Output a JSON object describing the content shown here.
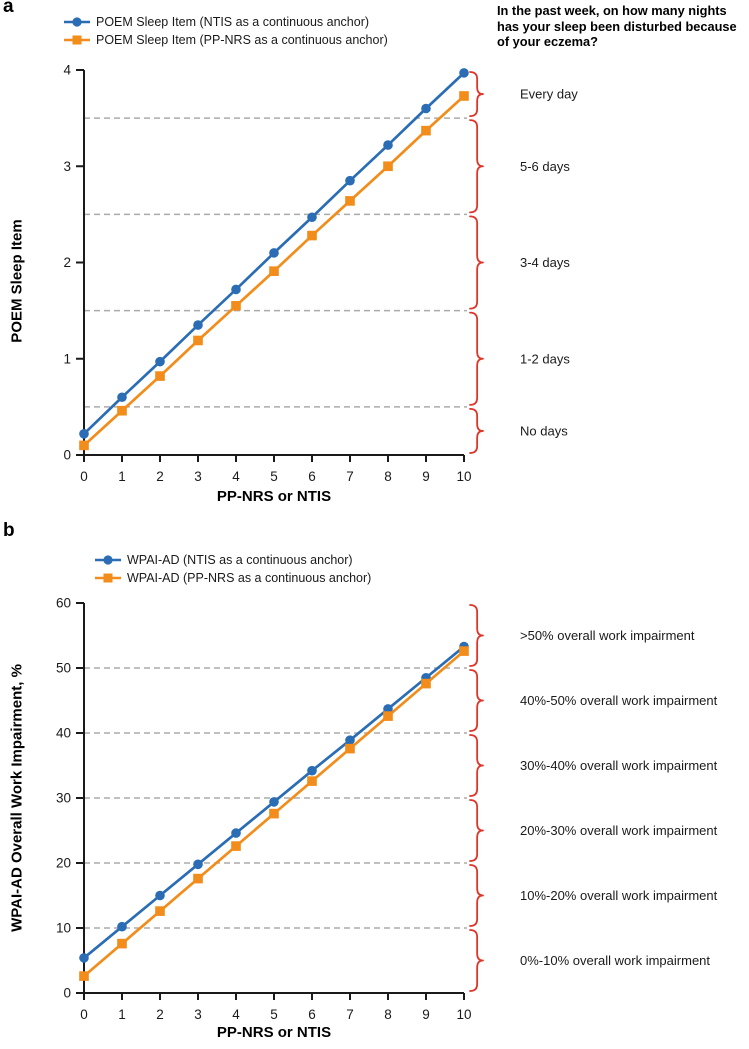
{
  "colors": {
    "blue": "#2a6db4",
    "orange": "#f28c1a",
    "brace_red": "#e03428",
    "grid_gray": "#ababab",
    "axis_black": "#1a1a1a"
  },
  "chart_data": [
    {
      "type": "line",
      "panel_label": "a",
      "question": "In the past week, on how many nights has your sleep been disturbed because of your eczema?",
      "ylabel": "POEM Sleep Item",
      "xlabel": "PP-NRS or NTIS",
      "ylim": [
        0,
        4
      ],
      "xlim": [
        0,
        10
      ],
      "yticks": [
        0,
        1,
        2,
        3,
        4
      ],
      "xticks": [
        0,
        1,
        2,
        3,
        4,
        5,
        6,
        7,
        8,
        9,
        10
      ],
      "grid_dashed_y": [
        0.5,
        1.5,
        2.5,
        3.5
      ],
      "x": [
        0,
        1,
        2,
        3,
        4,
        5,
        6,
        7,
        8,
        9,
        10
      ],
      "series": [
        {
          "name": "POEM Sleep Item (NTIS as a continuous anchor)",
          "marker": "circle",
          "color": "#2a6db4",
          "values": [
            0.22,
            0.6,
            0.97,
            1.35,
            1.72,
            2.1,
            2.47,
            2.85,
            3.22,
            3.6,
            3.97
          ]
        },
        {
          "name": "POEM Sleep Item (PP-NRS as a continuous anchor)",
          "marker": "square",
          "color": "#f28c1a",
          "values": [
            0.1,
            0.46,
            0.82,
            1.19,
            1.55,
            1.91,
            2.28,
            2.64,
            3.0,
            3.37,
            3.73
          ]
        }
      ],
      "annotations": [
        {
          "label": "Every day",
          "from": 3.5,
          "to": 4.0
        },
        {
          "label": "5-6 days",
          "from": 2.5,
          "to": 3.5
        },
        {
          "label": "3-4 days",
          "from": 1.5,
          "to": 2.5
        },
        {
          "label": "1-2 days",
          "from": 0.5,
          "to": 1.5
        },
        {
          "label": "No days",
          "from": 0.0,
          "to": 0.5
        }
      ]
    },
    {
      "type": "line",
      "panel_label": "b",
      "question": "",
      "ylabel": "WPAI-AD Overall Work Impairment, %",
      "xlabel": "PP-NRS or NTIS",
      "ylim": [
        0,
        60
      ],
      "xlim": [
        0,
        10
      ],
      "yticks": [
        0,
        10,
        20,
        30,
        40,
        50,
        60
      ],
      "xticks": [
        0,
        1,
        2,
        3,
        4,
        5,
        6,
        7,
        8,
        9,
        10
      ],
      "grid_dashed_y": [
        10,
        20,
        30,
        40,
        50
      ],
      "x": [
        0,
        1,
        2,
        3,
        4,
        5,
        6,
        7,
        8,
        9,
        10
      ],
      "series": [
        {
          "name": "WPAI-AD (NTIS as a continuous anchor)",
          "marker": "circle",
          "color": "#2a6db4",
          "values": [
            5.4,
            10.2,
            15.0,
            19.8,
            24.6,
            29.4,
            34.2,
            38.9,
            43.7,
            48.5,
            53.3
          ]
        },
        {
          "name": "WPAI-AD (PP-NRS as a continuous anchor)",
          "marker": "square",
          "color": "#f28c1a",
          "values": [
            2.6,
            7.6,
            12.6,
            17.6,
            22.6,
            27.6,
            32.6,
            37.6,
            42.6,
            47.6,
            52.6
          ]
        }
      ],
      "annotations": [
        {
          "label": ">50% overall work impairment",
          "from": 50,
          "to": 60
        },
        {
          "label": "40%-50% overall work impairment",
          "from": 40,
          "to": 50
        },
        {
          "label": "30%-40% overall work impairment",
          "from": 30,
          "to": 40
        },
        {
          "label": "20%-30% overall work impairment",
          "from": 20,
          "to": 30
        },
        {
          "label": "10%-20% overall work impairment",
          "from": 10,
          "to": 20
        },
        {
          "label": "0%-10% overall work impairment",
          "from": 0,
          "to": 10
        }
      ]
    }
  ]
}
